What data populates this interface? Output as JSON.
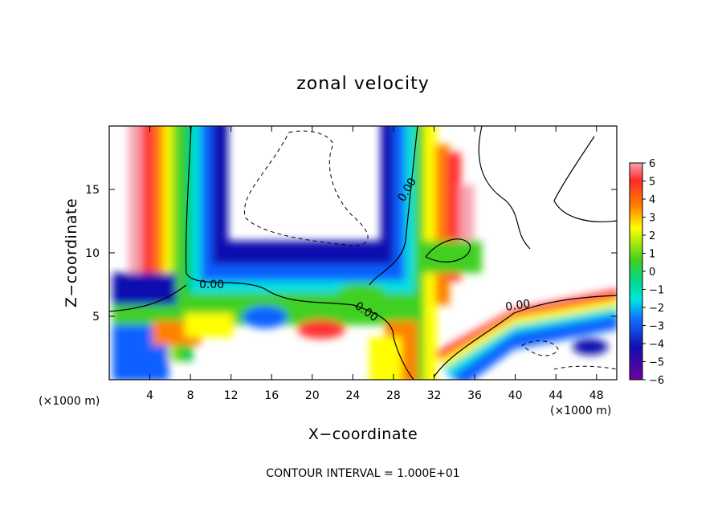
{
  "chart_data": {
    "type": "heatmap",
    "title": "zonal velocity",
    "xlabel": "X−coordinate",
    "ylabel": "Z−coordinate",
    "x_unit_left": "(×1000 m)",
    "x_unit_right": "(×1000 m)",
    "xlim": [
      0,
      50
    ],
    "ylim": [
      0,
      20
    ],
    "x_ticks": [
      4,
      8,
      12,
      16,
      20,
      24,
      28,
      32,
      36,
      40,
      44,
      48
    ],
    "y_ticks": [
      5,
      10,
      15
    ],
    "colorbar": {
      "ticks": [
        "6",
        "5",
        "4",
        "3",
        "2",
        "1",
        "0",
        "−1",
        "−2",
        "−3",
        "−4",
        "−5",
        "−6"
      ],
      "range": [
        -6,
        6
      ],
      "colors": [
        "#f7a3b0",
        "#ff3030",
        "#ff8000",
        "#ffff00",
        "#40d020",
        "#00e8c0",
        "#1060ff",
        "#1010a0",
        "#7000a0"
      ]
    },
    "contour_labels": [
      "0.00",
      "0.00",
      "0.00",
      "0.00"
    ],
    "footer": "CONTOUR INTERVAL = 1.000E+01"
  }
}
